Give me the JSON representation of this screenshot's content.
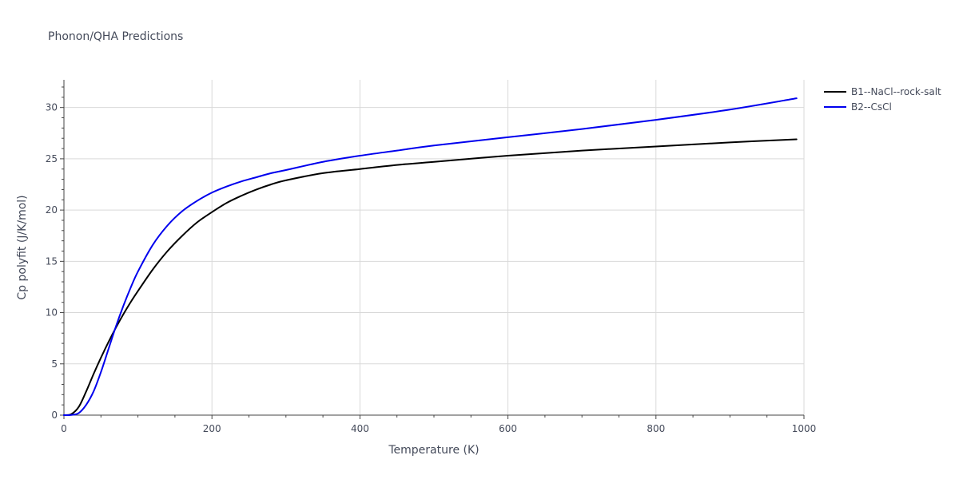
{
  "chart_data": {
    "type": "line",
    "title": "Phonon/QHA Predictions",
    "xlabel": "Temperature (K)",
    "ylabel": "Cp polyfit (J/K/mol)",
    "xlim": [
      0,
      1000
    ],
    "ylim": [
      0,
      32.7
    ],
    "xticks": [
      0,
      200,
      400,
      600,
      800,
      1000
    ],
    "yticks": [
      0,
      5,
      10,
      15,
      20,
      25,
      30
    ],
    "xminor_step": 50,
    "yminor_step": 1,
    "grid": true,
    "legend_position": "top-right",
    "series": [
      {
        "name": "B1--NaCl--rock-salt",
        "color": "#000000",
        "x": [
          0,
          10,
          20,
          30,
          40,
          50,
          60,
          70,
          80,
          90,
          100,
          120,
          140,
          160,
          180,
          200,
          220,
          240,
          260,
          280,
          300,
          350,
          400,
          450,
          500,
          600,
          700,
          800,
          900,
          990
        ],
        "y": [
          0,
          0.1,
          0.8,
          2.3,
          4.0,
          5.6,
          7.1,
          8.5,
          9.8,
          11.0,
          12.1,
          14.2,
          16.0,
          17.5,
          18.8,
          19.8,
          20.7,
          21.4,
          22.0,
          22.5,
          22.9,
          23.6,
          24.0,
          24.4,
          24.7,
          25.3,
          25.8,
          26.2,
          26.6,
          26.9
        ]
      },
      {
        "name": "B2--CsCl",
        "color": "#0000ee",
        "x": [
          0,
          10,
          20,
          30,
          40,
          50,
          60,
          70,
          80,
          90,
          100,
          120,
          140,
          160,
          180,
          200,
          220,
          240,
          260,
          280,
          300,
          350,
          400,
          450,
          500,
          600,
          700,
          800,
          900,
          990
        ],
        "y": [
          0,
          0.02,
          0.2,
          1.0,
          2.3,
          4.2,
          6.4,
          8.6,
          10.6,
          12.4,
          14.0,
          16.6,
          18.5,
          19.9,
          20.9,
          21.7,
          22.3,
          22.8,
          23.2,
          23.6,
          23.9,
          24.7,
          25.3,
          25.8,
          26.3,
          27.1,
          27.9,
          28.8,
          29.8,
          30.9
        ]
      }
    ]
  }
}
